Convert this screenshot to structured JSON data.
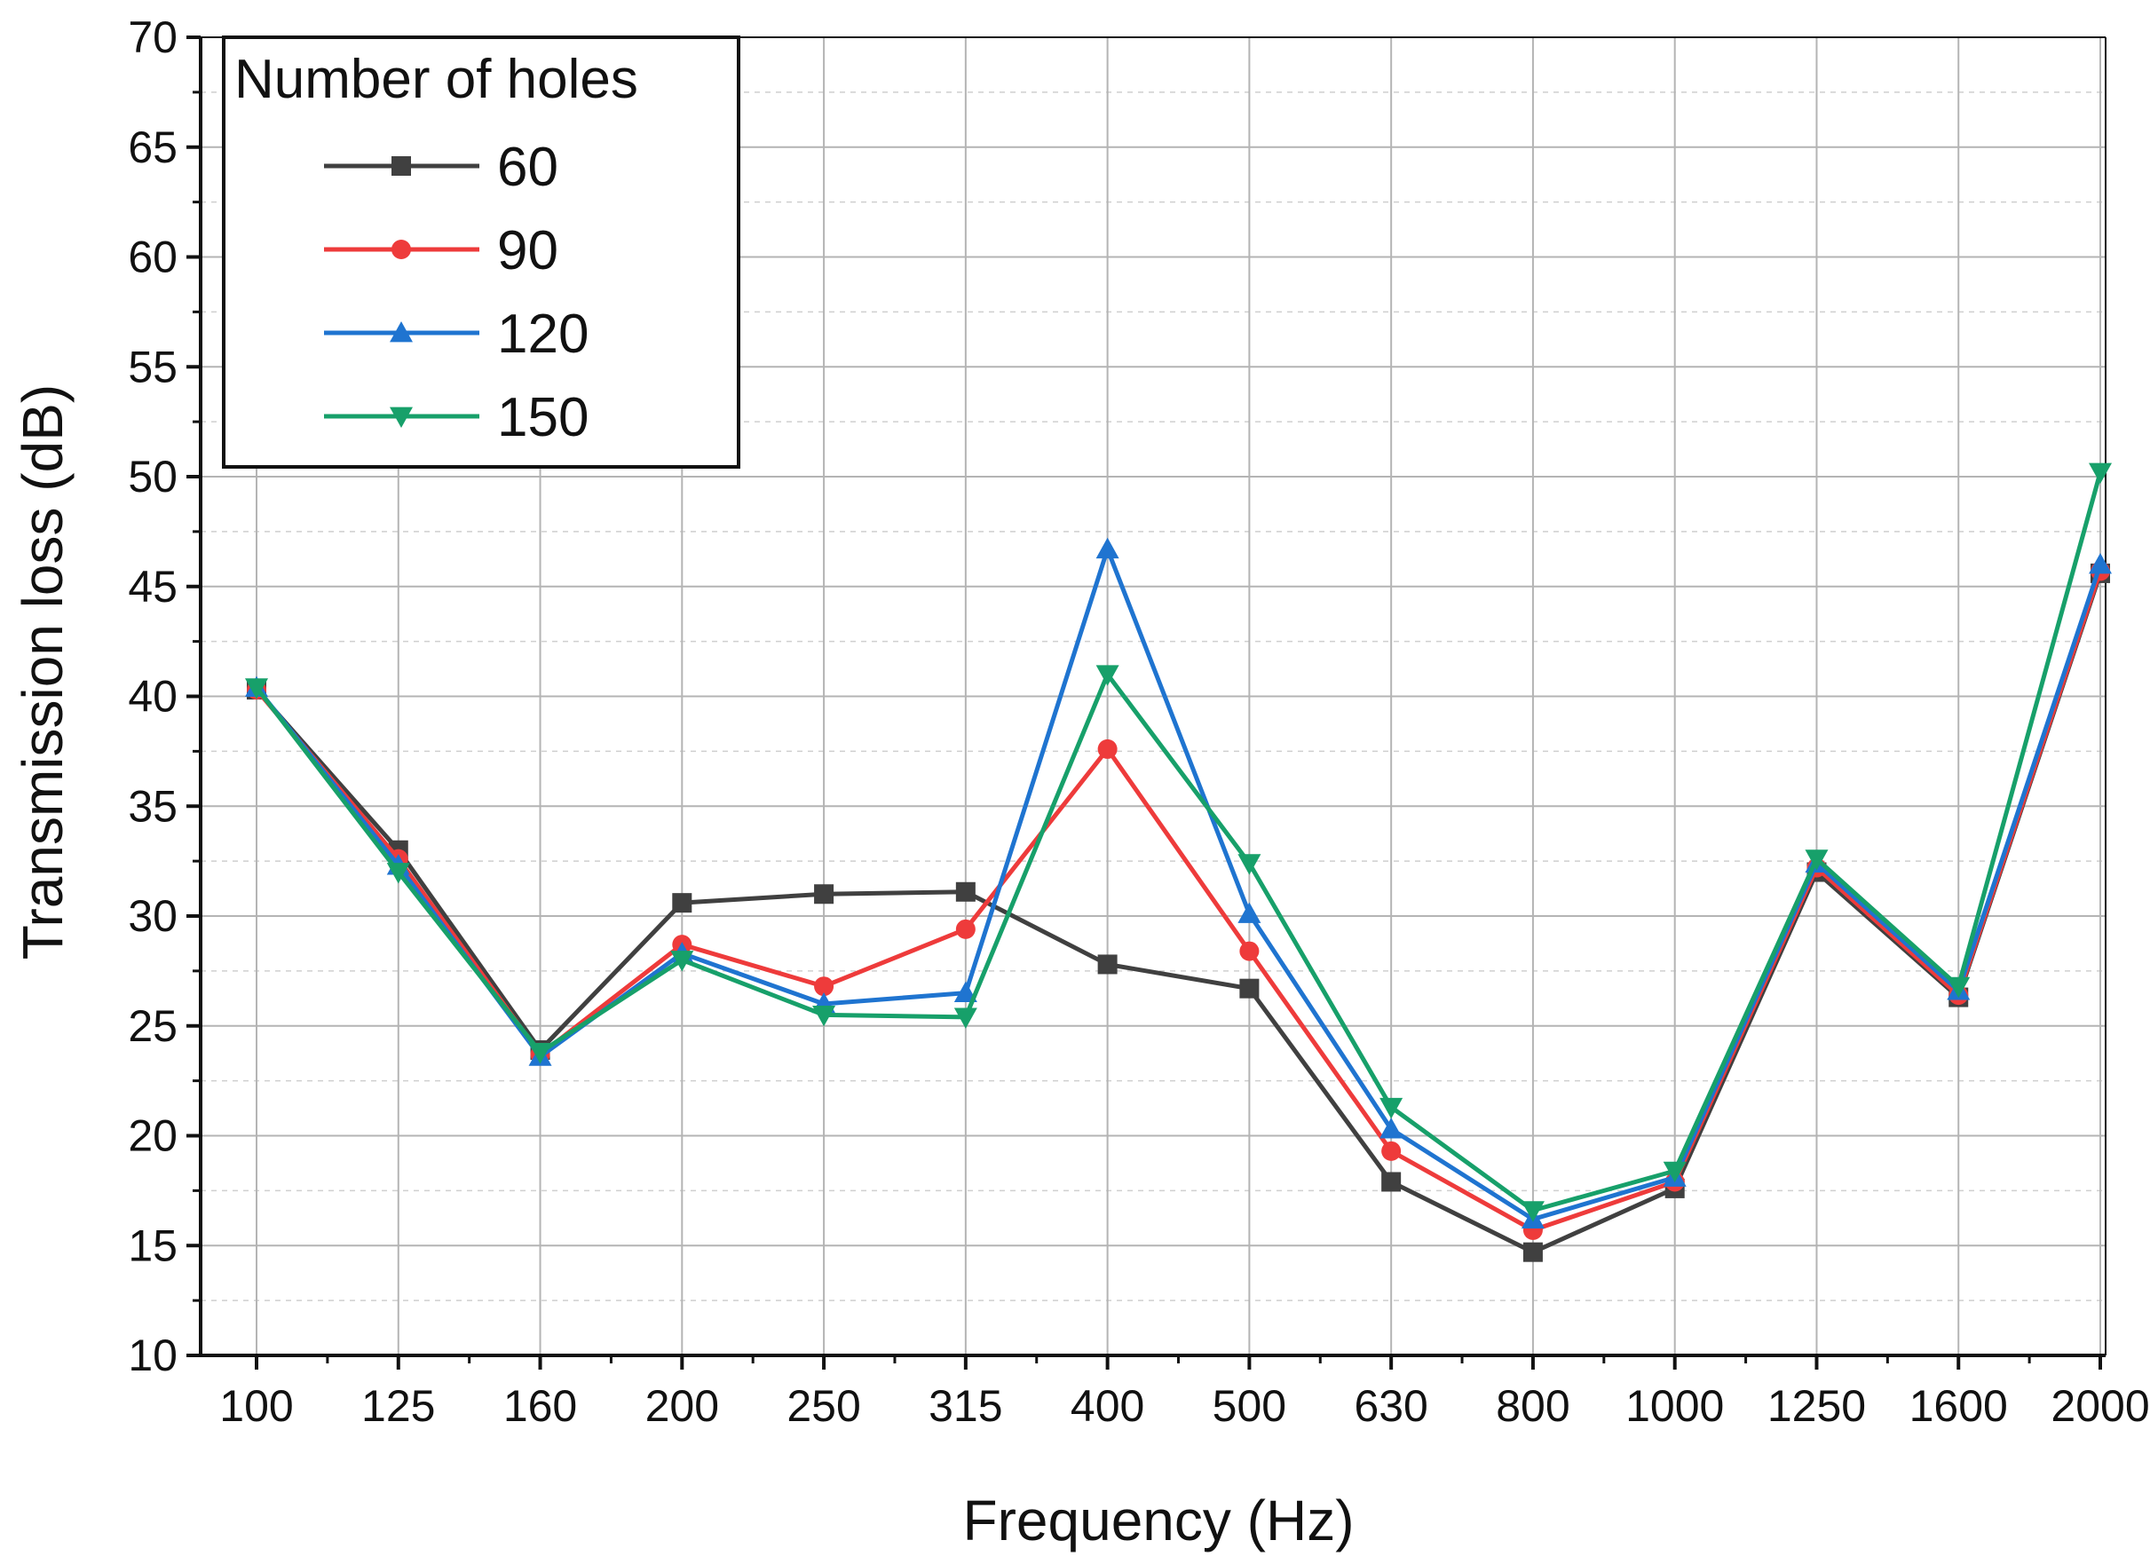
{
  "chart_data": {
    "type": "line",
    "title": "",
    "xlabel": "Frequency (Hz)",
    "ylabel": "Transmission loss (dB)",
    "categories": [
      "100",
      "125",
      "160",
      "200",
      "250",
      "315",
      "400",
      "500",
      "630",
      "800",
      "1000",
      "1250",
      "1600",
      "2000"
    ],
    "ylim": [
      10,
      70
    ],
    "yticks": [
      "10",
      "15",
      "20",
      "25",
      "30",
      "35",
      "40",
      "45",
      "50",
      "55",
      "60",
      "65",
      "70"
    ],
    "grid": true,
    "legend": {
      "title": "Number of holes",
      "placement": "top-left"
    },
    "series": [
      {
        "name": "60",
        "color": "#404040",
        "marker": "square",
        "values": [
          40.3,
          33.0,
          23.9,
          30.6,
          31.0,
          31.1,
          27.8,
          26.7,
          17.9,
          14.7,
          17.6,
          32.0,
          26.3,
          45.6
        ]
      },
      {
        "name": "90",
        "color": "#ee3b3b",
        "marker": "circle",
        "values": [
          40.3,
          32.6,
          23.7,
          28.7,
          26.8,
          29.4,
          37.6,
          28.4,
          19.3,
          15.7,
          17.9,
          32.2,
          26.4,
          45.7
        ]
      },
      {
        "name": "120",
        "color": "#1f74d0",
        "marker": "triangle-up",
        "values": [
          40.4,
          32.3,
          23.6,
          28.3,
          26.0,
          26.5,
          46.7,
          30.1,
          20.3,
          16.2,
          18.1,
          32.4,
          26.6,
          46.0
        ]
      },
      {
        "name": "150",
        "color": "#17a06a",
        "marker": "triangle-down",
        "values": [
          40.4,
          32.0,
          23.8,
          28.0,
          25.5,
          25.4,
          41.0,
          32.4,
          21.3,
          16.6,
          18.4,
          32.6,
          26.8,
          50.2
        ]
      }
    ]
  }
}
